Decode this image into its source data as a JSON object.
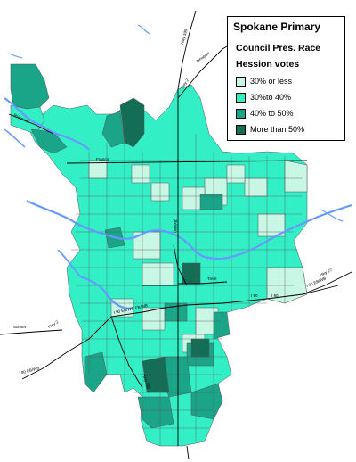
{
  "legend": {
    "title": "Spokane Primary",
    "subtitle1": "Council Pres. Race",
    "subtitle2": "Hession votes",
    "items": [
      {
        "label": "30% or less",
        "color": "#c8f7e6"
      },
      {
        "label": "30%to 40%",
        "color": "#33efc6"
      },
      {
        "label": "40% to 50%",
        "color": "#1aa589"
      },
      {
        "label": "More than 50%",
        "color": "#146e56"
      }
    ]
  },
  "map_labels": {
    "francis": "Francis",
    "division": "Division",
    "trent": "Trent",
    "i90_a": "I 90",
    "i90_b": "I 90",
    "hwy395": "Hwy 395",
    "hwy2": "Hwy 2",
    "newport": "Newport",
    "riverside": "Riverside",
    "sunset": "Sunset",
    "hwy2_west": "Hwy 2",
    "i90_west": "I 90 EB/WB",
    "i90_junction": "I 90 EB/WB EB/WB",
    "i90_east": "I 90 EB/WB",
    "hwy195": "Hwy 195",
    "hwy_east": "Hwy 27"
  },
  "colors": {
    "river": "#6699ff",
    "roads": "#000000",
    "district_border": "#5a5a5a"
  }
}
